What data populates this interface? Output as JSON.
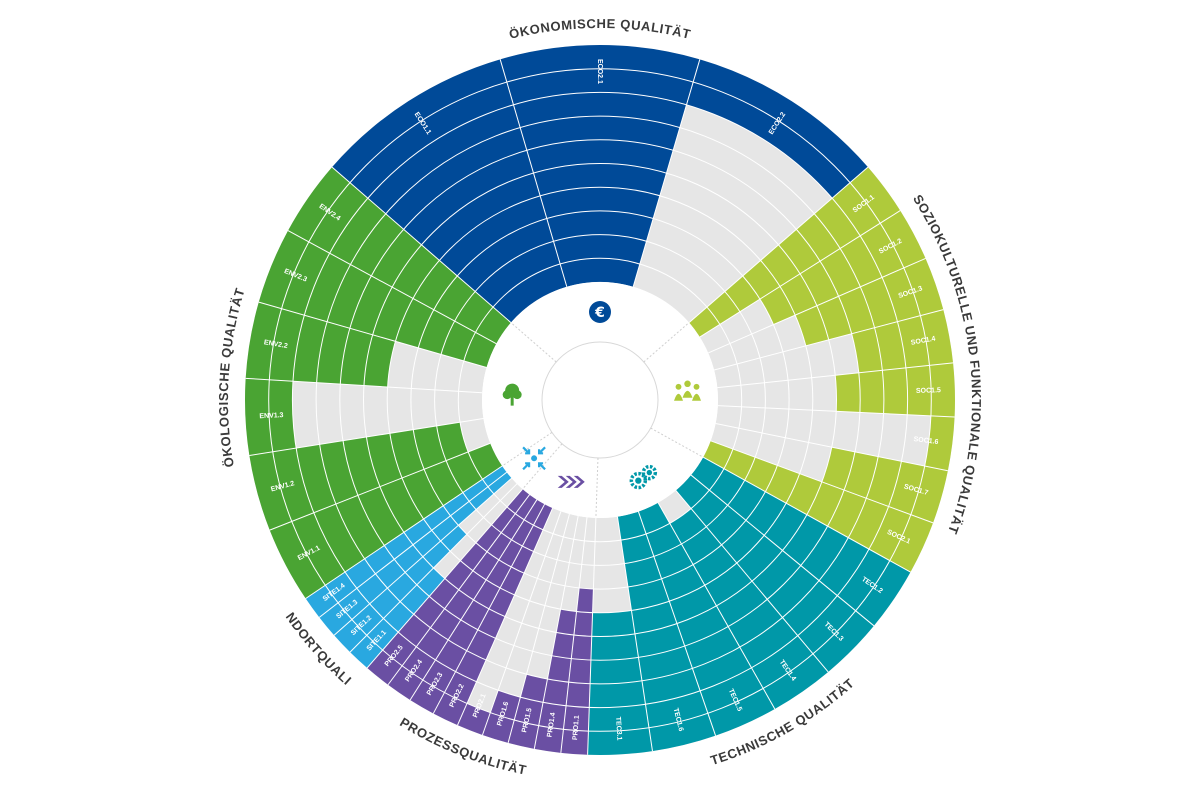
{
  "chart_data": {
    "type": "radial-bar",
    "levels": 10,
    "max": 100,
    "groups": [
      {
        "name": "ÖKONOMISCHE QUALITÄT",
        "color": "#004a98",
        "icon": "euro-icon",
        "criteria": [
          {
            "code": "ECO1.1",
            "value": 100
          },
          {
            "code": "ECO2.1",
            "value": 100
          },
          {
            "code": "ECO2.2",
            "value": 20
          }
        ]
      },
      {
        "name": "SOZIOKULTURELLE UND FUNKTIONALE QUALITÄT",
        "color": "#afca3b",
        "icon": "people-icon",
        "criteria": [
          {
            "code": "SOC1.1",
            "value": 100
          },
          {
            "code": "SOC1.2",
            "value": 70
          },
          {
            "code": "SOC1.3",
            "value": 60
          },
          {
            "code": "SOC1.4",
            "value": 40
          },
          {
            "code": "SOC1.5",
            "value": 50
          },
          {
            "code": "SOC1.6",
            "value": 10
          },
          {
            "code": "SOC1.7",
            "value": 50
          },
          {
            "code": "SOC2.1",
            "value": 100
          }
        ]
      },
      {
        "name": "TECHNISCHE QUALITÄT",
        "color": "#0098a8",
        "icon": "gears-icon",
        "criteria": [
          {
            "code": "TEC1.2",
            "value": 100
          },
          {
            "code": "TEC1.3",
            "value": 100
          },
          {
            "code": "TEC1.4",
            "value": 90
          },
          {
            "code": "TEC1.5",
            "value": 100
          },
          {
            "code": "TEC1.6",
            "value": 100
          },
          {
            "code": "TEC3.1",
            "value": 60
          }
        ]
      },
      {
        "name": "PROZESSQUALITÄT",
        "color": "#6a4fa3",
        "icon": "arrows-icon",
        "criteria": [
          {
            "code": "PRO1.1",
            "value": 70
          },
          {
            "code": "PRO1.4",
            "value": 60
          },
          {
            "code": "PRO1.5",
            "value": 30
          },
          {
            "code": "PRO1.6",
            "value": 20
          },
          {
            "code": "PRO2.1",
            "value": 10
          },
          {
            "code": "PRO2.2",
            "value": 100
          },
          {
            "code": "PRO2.3",
            "value": 100
          },
          {
            "code": "PRO2.4",
            "value": 100
          },
          {
            "code": "PRO2.5",
            "value": 100
          }
        ]
      },
      {
        "name": "STANDORTQUALITÄT",
        "color": "#29a8e0",
        "icon": "location-icon",
        "criteria": [
          {
            "code": "SITE1.1",
            "value": 50
          },
          {
            "code": "SITE1.2",
            "value": 70
          },
          {
            "code": "SITE1.3",
            "value": 100
          },
          {
            "code": "SITE1.4",
            "value": 100
          }
        ]
      },
      {
        "name": "ÖKOLOGISCHE QUALITÄT",
        "color": "#4aa433",
        "icon": "tree-icon",
        "criteria": [
          {
            "code": "ENV1.1",
            "value": 100
          },
          {
            "code": "ENV1.2",
            "value": 90
          },
          {
            "code": "ENV1.3",
            "value": 20
          },
          {
            "code": "ENV2.2",
            "value": 60
          },
          {
            "code": "ENV2.3",
            "value": 100
          },
          {
            "code": "ENV2.4",
            "value": 100
          }
        ]
      }
    ]
  }
}
